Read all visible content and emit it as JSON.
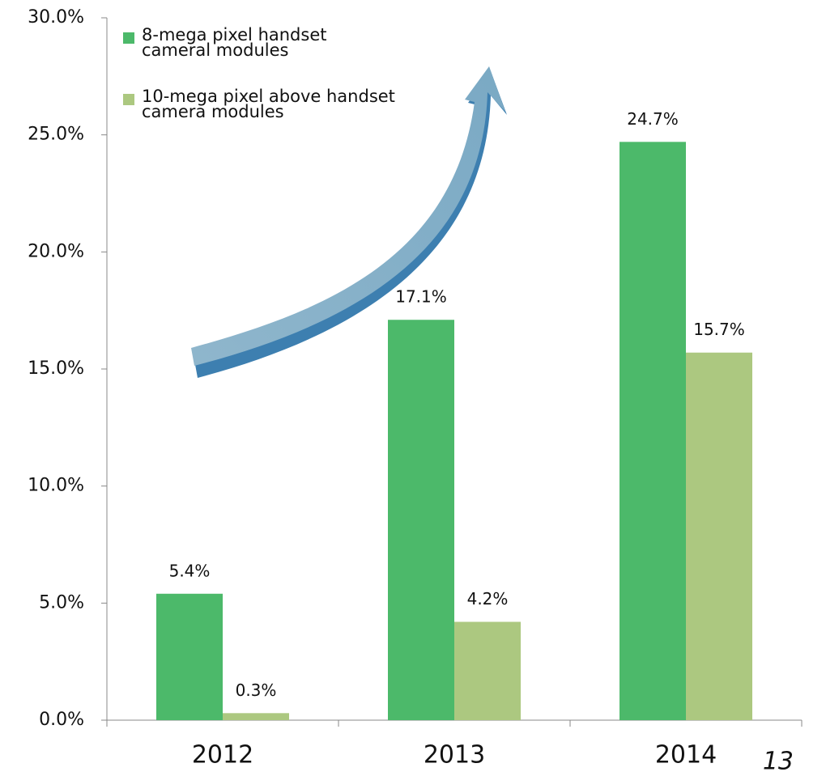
{
  "chart_data": {
    "type": "bar",
    "categories": [
      "2012",
      "2013",
      "2014"
    ],
    "series": [
      {
        "name": "8-mega pixel handset\ncameral modules",
        "color": "#4cb96a",
        "values": [
          5.4,
          17.1,
          24.7
        ],
        "value_labels": [
          "5.4%",
          "17.1%",
          "24.7%"
        ]
      },
      {
        "name": "10-mega pixel above handset\ncamera modules",
        "color": "#acc880",
        "values": [
          0.3,
          4.2,
          15.7
        ],
        "value_labels": [
          "0.3%",
          "4.2%",
          "15.7%"
        ]
      }
    ],
    "ylim": [
      0,
      30
    ],
    "yticks": [
      {
        "value": 0,
        "label": "0.0%"
      },
      {
        "value": 5,
        "label": "5.0%"
      },
      {
        "value": 10,
        "label": "10.0%"
      },
      {
        "value": 15,
        "label": "15.0%"
      },
      {
        "value": 20,
        "label": "20.0%"
      },
      {
        "value": 25,
        "label": "25.0%"
      },
      {
        "value": 30,
        "label": "30.0%"
      }
    ],
    "legend": "upper left",
    "page_number": "13"
  }
}
